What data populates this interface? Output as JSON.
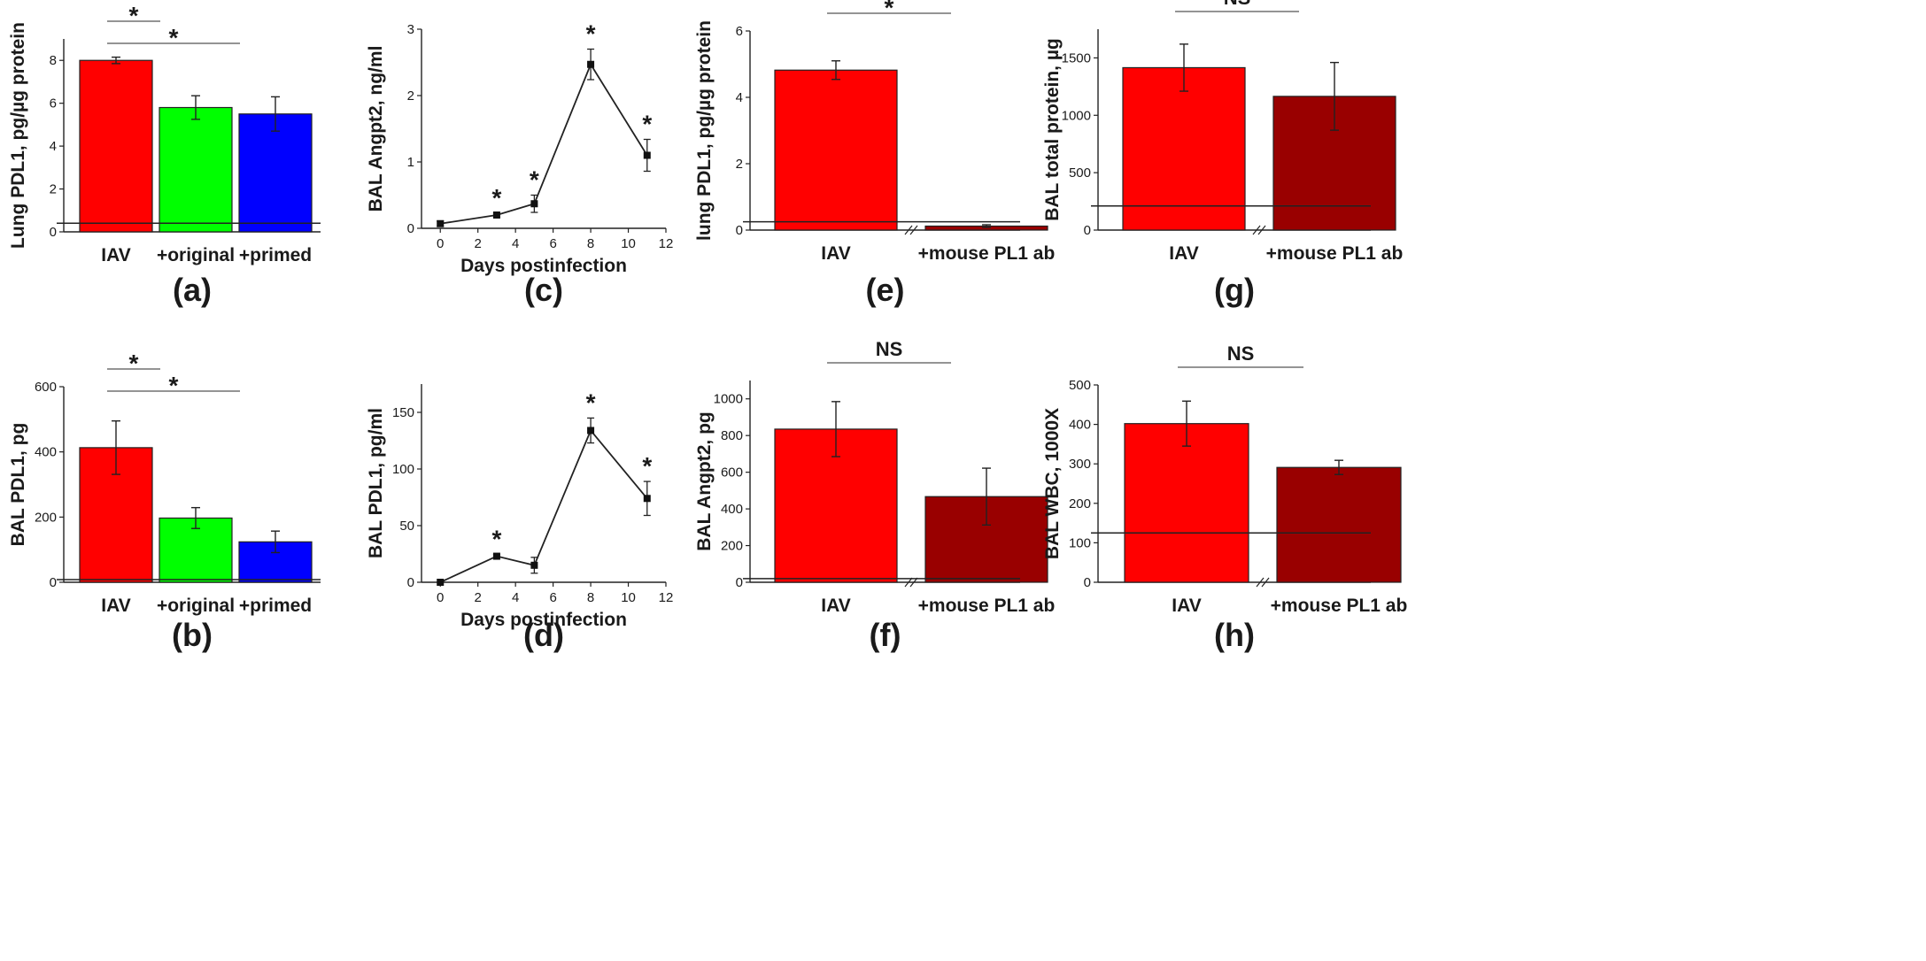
{
  "chart_data": [
    {
      "panel": "(a)",
      "type": "bar",
      "ylabel": "Lung PDL1, pg/µg protein",
      "yticks": [
        "0",
        "2",
        "4",
        "6",
        "8"
      ],
      "ylim": [
        0,
        9
      ],
      "categories": [
        "IAV",
        "+original",
        "+primed"
      ],
      "values": [
        8.0,
        5.8,
        5.5
      ],
      "errors": [
        0.15,
        0.55,
        0.8
      ],
      "colors": [
        "#ff0000",
        "#00ff00",
        "#0000ff"
      ],
      "baseline": 0.4,
      "axis_break": false,
      "brackets": [
        {
          "from": 0,
          "to": 1,
          "label": "*"
        },
        {
          "from": 0,
          "to": 2,
          "label": "*"
        }
      ]
    },
    {
      "panel": "(b)",
      "type": "bar",
      "ylabel": "BAL PDL1, pg",
      "yticks": [
        "0",
        "200",
        "400",
        "600"
      ],
      "ylim": [
        0,
        600
      ],
      "categories": [
        "IAV",
        "+original",
        "+primed"
      ],
      "values": [
        413,
        197,
        124
      ],
      "errors": [
        82,
        32,
        33
      ],
      "colors": [
        "#ff0000",
        "#00ff00",
        "#0000ff"
      ],
      "baseline": 8,
      "axis_break": false,
      "brackets": [
        {
          "from": 0,
          "to": 1,
          "label": "*"
        },
        {
          "from": 0,
          "to": 2,
          "label": "*"
        }
      ]
    },
    {
      "panel": "(c)",
      "type": "line",
      "ylabel": "BAL Angpt2, ng/ml",
      "xlabel": "Days postinfection",
      "xticks": [
        "0",
        "2",
        "4",
        "6",
        "8",
        "10",
        "12"
      ],
      "xlim": [
        -1,
        12
      ],
      "yticks": [
        "0",
        "1",
        "2",
        "3"
      ],
      "ylim": [
        0,
        3
      ],
      "x": [
        0,
        3,
        5,
        8,
        11
      ],
      "values": [
        0.07,
        0.2,
        0.37,
        2.47,
        1.1
      ],
      "errors": [
        0.04,
        0.03,
        0.13,
        0.23,
        0.24
      ],
      "stars": [
        "",
        "*",
        "*",
        "*",
        "*"
      ]
    },
    {
      "panel": "(d)",
      "type": "line",
      "ylabel": "BAL PDL1, pg/ml",
      "xlabel": "Days postinfection",
      "xticks": [
        "0",
        "2",
        "4",
        "6",
        "8",
        "10",
        "12"
      ],
      "xlim": [
        -1,
        12
      ],
      "yticks": [
        "0",
        "50",
        "100",
        "150"
      ],
      "ylim": [
        0,
        175
      ],
      "x": [
        0,
        3,
        5,
        8,
        11
      ],
      "values": [
        0,
        23,
        15,
        134,
        74
      ],
      "errors": [
        0,
        1.5,
        7,
        11,
        15
      ],
      "stars": [
        "",
        "*",
        "",
        "*",
        "*"
      ]
    },
    {
      "panel": "(e)",
      "type": "bar",
      "ylabel": "lung PDL1, pg/µg protein",
      "yticks": [
        "0",
        "2",
        "4",
        "6"
      ],
      "ylim": [
        0,
        6
      ],
      "categories": [
        "IAV",
        "+mouse PL1 ab"
      ],
      "values": [
        4.82,
        0.12
      ],
      "errors": [
        0.28,
        0.04
      ],
      "colors": [
        "#ff0000",
        "#990000"
      ],
      "baseline": 0.25,
      "axis_break": true,
      "brackets": [
        {
          "from": 0,
          "to": 1,
          "label": "*"
        }
      ]
    },
    {
      "panel": "(f)",
      "type": "bar",
      "ylabel": "BAL Angpt2, pg",
      "yticks": [
        "0",
        "200",
        "400",
        "600",
        "800",
        "1000"
      ],
      "ylim": [
        0,
        1100
      ],
      "categories": [
        "IAV",
        "+mouse PL1 ab"
      ],
      "values": [
        835,
        467
      ],
      "errors": [
        150,
        155
      ],
      "colors": [
        "#ff0000",
        "#990000"
      ],
      "baseline": 20,
      "axis_break": true,
      "brackets": [
        {
          "from": 0,
          "to": 1,
          "label": "NS"
        }
      ]
    },
    {
      "panel": "(g)",
      "type": "bar",
      "ylabel": "BAL total protein, µg",
      "yticks": [
        "0",
        "500",
        "1000",
        "1500"
      ],
      "ylim": [
        0,
        1750
      ],
      "categories": [
        "IAV",
        "+mouse PL1 ab"
      ],
      "values": [
        1415,
        1165
      ],
      "errors": [
        205,
        295
      ],
      "colors": [
        "#ff0000",
        "#990000"
      ],
      "baseline": 210,
      "axis_break": true,
      "brackets": [
        {
          "from": 0,
          "to": 1,
          "label": "NS"
        }
      ]
    },
    {
      "panel": "(h)",
      "type": "bar",
      "ylabel": "BAL WBC, 1000X",
      "yticks": [
        "0",
        "100",
        "200",
        "300",
        "400",
        "500"
      ],
      "ylim": [
        0,
        500
      ],
      "categories": [
        "IAV",
        "+mouse PL1 ab"
      ],
      "values": [
        402,
        291
      ],
      "errors": [
        57,
        18
      ],
      "colors": [
        "#ff0000",
        "#990000"
      ],
      "baseline": 125,
      "axis_break": true,
      "brackets": [
        {
          "from": 0,
          "to": 1,
          "label": "NS"
        }
      ]
    }
  ]
}
